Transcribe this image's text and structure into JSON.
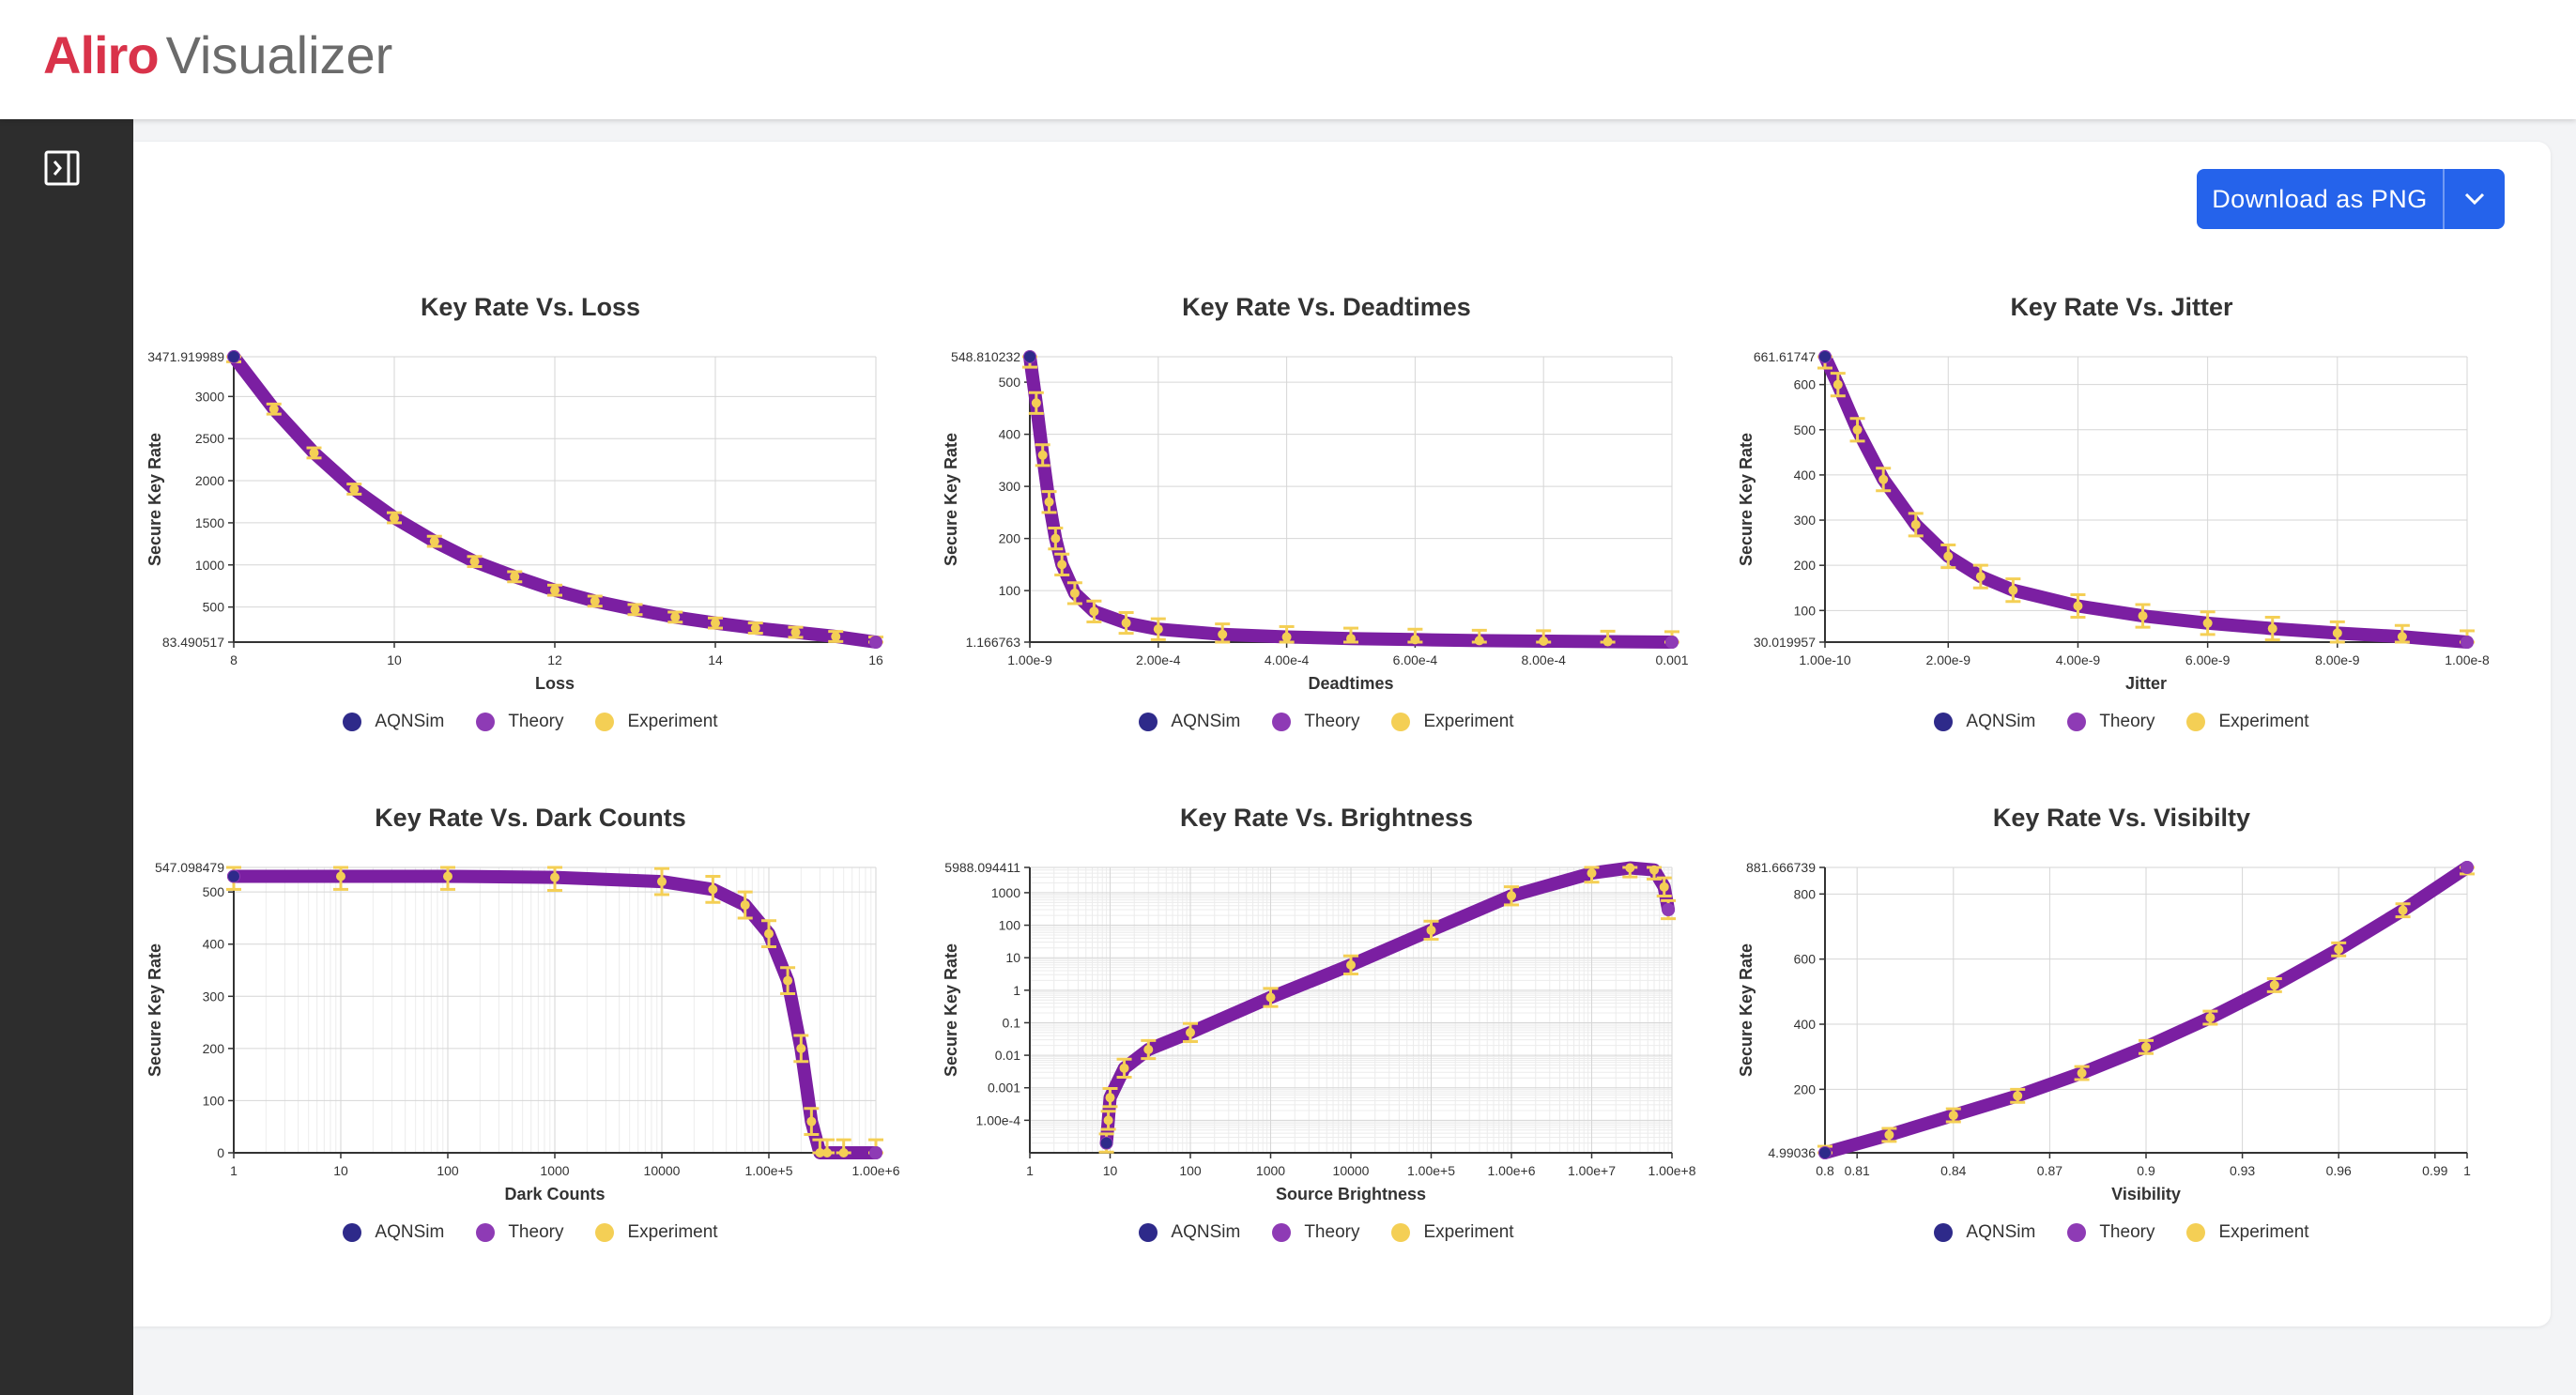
{
  "header": {
    "brand": "Aliro",
    "product": "Visualizer"
  },
  "sidebar": {
    "toggle_icon": "sidebar-collapse-icon"
  },
  "toolbar": {
    "download_label": "Download as PNG",
    "dropdown_icon": "chevron-down-icon"
  },
  "colors": {
    "aqnsim": "#2e2a8a",
    "theory": "#8e3bb5",
    "experiment": "#f4cf55",
    "curve": "#7b1fa2",
    "button": "#2563eb"
  },
  "legend": [
    {
      "label": "AQNSim",
      "color": "#2e2a8a"
    },
    {
      "label": "Theory",
      "color": "#8e3bb5"
    },
    {
      "label": "Experiment",
      "color": "#f4cf55"
    }
  ],
  "chart_data": [
    {
      "type": "line",
      "title": "Key Rate Vs. Loss",
      "xlabel": "Loss",
      "ylabel": "Secure Key Rate",
      "xscale": "linear",
      "yscale": "linear",
      "xlim": [
        8,
        16
      ],
      "ylim": [
        83.490517,
        3471.919989
      ],
      "xticks": [
        8,
        10,
        12,
        14,
        16
      ],
      "xticklabels": [
        "8",
        "10",
        "12",
        "14",
        "16"
      ],
      "yticks": [
        83.490517,
        500,
        1000,
        1500,
        2000,
        2500,
        3000,
        3471.919989
      ],
      "yticklabels": [
        "83.490517",
        "500",
        "1000",
        "1500",
        "2000",
        "2500",
        "3000",
        "3471.919989"
      ],
      "x": [
        8,
        8.5,
        9,
        9.5,
        10,
        10.5,
        11,
        11.5,
        12,
        12.5,
        13,
        13.5,
        14,
        14.5,
        15,
        15.5,
        16
      ],
      "y": [
        3471.9,
        2850,
        2330,
        1900,
        1560,
        1280,
        1040,
        860,
        700,
        570,
        470,
        380,
        310,
        250,
        200,
        150,
        83.5
      ],
      "experiment_error": 60
    },
    {
      "type": "line",
      "title": "Key Rate Vs. Deadtimes",
      "xlabel": "Deadtimes",
      "ylabel": "Secure Key Rate",
      "xscale": "linear",
      "yscale": "linear",
      "xlim": [
        0,
        0.001
      ],
      "ylim": [
        1.166763,
        548.810232
      ],
      "xticks": [
        0,
        0.0002,
        0.0004,
        0.0006,
        0.0008,
        0.001
      ],
      "xticklabels": [
        "1.00e-9",
        "2.00e-4",
        "4.00e-4",
        "6.00e-4",
        "8.00e-4",
        "0.001"
      ],
      "yticks": [
        1.166763,
        100,
        200,
        300,
        400,
        500,
        548.810232
      ],
      "yticklabels": [
        "1.166763",
        "100",
        "200",
        "300",
        "400",
        "500",
        "548.810232"
      ],
      "x": [
        0,
        1e-05,
        2e-05,
        3e-05,
        4e-05,
        5e-05,
        7e-05,
        0.0001,
        0.00015,
        0.0002,
        0.0003,
        0.0004,
        0.0005,
        0.0006,
        0.0007,
        0.0008,
        0.0009,
        0.001
      ],
      "y": [
        548.8,
        460,
        360,
        270,
        200,
        150,
        95,
        60,
        38,
        26,
        16,
        11,
        8,
        6,
        4,
        3,
        2,
        1.17
      ],
      "experiment_error": 20
    },
    {
      "type": "line",
      "title": "Key Rate Vs. Jitter",
      "xlabel": "Jitter",
      "ylabel": "Secure Key Rate",
      "xscale": "linear",
      "yscale": "linear",
      "xlim": [
        1e-10,
        1e-08
      ],
      "ylim": [
        30.019957,
        661.61747
      ],
      "xticks": [
        1e-10,
        2e-09,
        4e-09,
        6e-09,
        8e-09,
        1e-08
      ],
      "xticklabels": [
        "1.00e-10",
        "2.00e-9",
        "4.00e-9",
        "6.00e-9",
        "8.00e-9",
        "1.00e-8"
      ],
      "yticks": [
        30.019957,
        100,
        200,
        300,
        400,
        500,
        600,
        661.61747
      ],
      "yticklabels": [
        "30.019957",
        "100",
        "200",
        "300",
        "400",
        "500",
        "600",
        "661.61747"
      ],
      "x": [
        1e-10,
        3e-10,
        6e-10,
        1e-09,
        1.5e-09,
        2e-09,
        2.5e-09,
        3e-09,
        4e-09,
        5e-09,
        6e-09,
        7e-09,
        8e-09,
        9e-09,
        1e-08
      ],
      "y": [
        661.6,
        600,
        500,
        390,
        290,
        220,
        175,
        145,
        110,
        88,
        72,
        60,
        50,
        42,
        30
      ],
      "experiment_error": 25
    },
    {
      "type": "line",
      "title": "Key Rate Vs. Dark Counts",
      "xlabel": "Dark Counts",
      "ylabel": "Secure Key Rate",
      "xscale": "log",
      "yscale": "linear",
      "xlim": [
        1,
        1000000
      ],
      "ylim": [
        0,
        547.098479
      ],
      "xticks": [
        1,
        10,
        100,
        1000,
        10000,
        100000,
        1000000
      ],
      "xticklabels": [
        "1",
        "10",
        "100",
        "1000",
        "10000",
        "1.00e+5",
        "1.00e+6"
      ],
      "yticks": [
        0,
        100,
        200,
        300,
        400,
        500,
        547.098479
      ],
      "yticklabels": [
        "0",
        "100",
        "200",
        "300",
        "400",
        "500",
        "547.098479"
      ],
      "x": [
        1,
        10,
        100,
        1000,
        10000,
        30000,
        60000,
        100000,
        150000,
        200000,
        250000,
        300000,
        350000,
        500000,
        1000000
      ],
      "y": [
        530,
        530,
        530,
        528,
        520,
        505,
        475,
        420,
        330,
        200,
        60,
        0,
        0,
        0,
        0
      ],
      "experiment_error": 25
    },
    {
      "type": "line",
      "title": "Key Rate Vs. Brightness",
      "xlabel": "Source Brightness",
      "ylabel": "Secure Key Rate",
      "xscale": "log",
      "yscale": "log",
      "xlim": [
        1,
        100000000
      ],
      "ylim": [
        1e-05,
        5988.094411
      ],
      "xticks": [
        1,
        10,
        100,
        1000,
        10000,
        100000,
        1000000,
        10000000,
        100000000
      ],
      "xticklabels": [
        "1",
        "10",
        "100",
        "1000",
        "10000",
        "1.00e+5",
        "1.00e+6",
        "1.00e+7",
        "1.00e+8"
      ],
      "yticks": [
        0.0001,
        0.001,
        0.01,
        0.1,
        1,
        10,
        100,
        1000,
        5988.094411
      ],
      "yticklabels": [
        "1.00e-4",
        "0.001",
        "0.01",
        "0.1",
        "1",
        "10",
        "100",
        "1000",
        "5988.094411"
      ],
      "x": [
        9,
        9.5,
        10,
        15,
        30,
        100,
        1000,
        10000,
        100000,
        1000000,
        10000000,
        30000000,
        60000000,
        80000000,
        90000000
      ],
      "y": [
        2e-05,
        0.0001,
        0.0005,
        0.004,
        0.015,
        0.05,
        0.6,
        6,
        70,
        800,
        4000,
        5800,
        5000,
        1500,
        300
      ],
      "experiment_error": 0.3
    },
    {
      "type": "line",
      "title": "Key Rate Vs. Visibilty",
      "xlabel": "Visibility",
      "ylabel": "Secure Key Rate",
      "xscale": "linear",
      "yscale": "linear",
      "xlim": [
        0.8,
        1
      ],
      "ylim": [
        4.99036,
        881.666739
      ],
      "xticks": [
        0.8,
        0.81,
        0.84,
        0.87,
        0.9,
        0.93,
        0.96,
        0.99,
        1
      ],
      "xticklabels": [
        "0.8",
        "0.81",
        "0.84",
        "0.87",
        "0.9",
        "0.93",
        "0.96",
        "0.99",
        "1"
      ],
      "yticks": [
        4.99036,
        200,
        400,
        600,
        800,
        881.666739
      ],
      "yticklabels": [
        "4.99036",
        "200",
        "400",
        "600",
        "800",
        "881.666739"
      ],
      "x": [
        0.8,
        0.82,
        0.84,
        0.86,
        0.88,
        0.9,
        0.92,
        0.94,
        0.96,
        0.98,
        1
      ],
      "y": [
        5,
        60,
        120,
        180,
        250,
        330,
        420,
        520,
        630,
        750,
        881.7
      ],
      "experiment_error": 20
    }
  ]
}
